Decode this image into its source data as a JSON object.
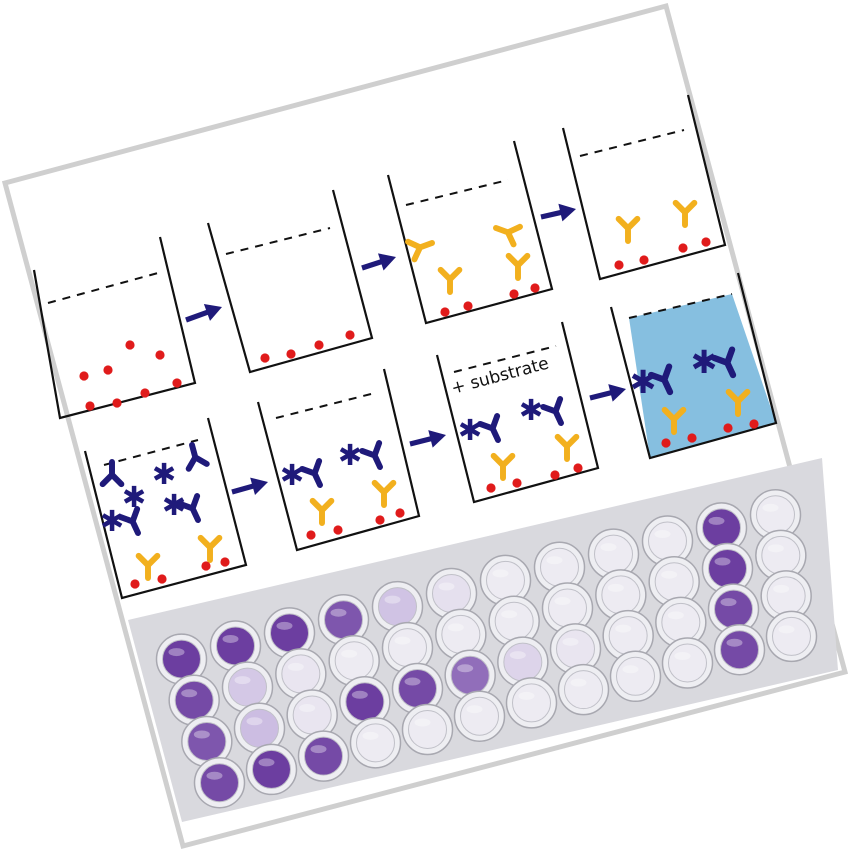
{
  "steps": [
    {
      "label": ""
    },
    {
      "label": ""
    },
    {
      "label": ""
    },
    {
      "label": ""
    },
    {
      "label": ""
    },
    {
      "label": ""
    },
    {
      "label": "+ substrate"
    },
    {
      "label": ""
    }
  ],
  "colors": {
    "frame": "#cfcfcf",
    "antigen": "#e01b1b",
    "primary_antibody": "#f2b01e",
    "secondary_antibody": "#1f1a7a",
    "arrow": "#1f1a7a",
    "colored_solution": "#86bfe0",
    "plate_background": "#d9d9de",
    "well_dark": "#6c3ea0",
    "well_light": "#c8b7e0",
    "well_empty": "#f1f1f4"
  },
  "plate": {
    "columns": 12,
    "rows": 4,
    "well_intensity": [
      [
        0.9,
        0.9,
        0.9,
        0.8,
        0.4,
        0.15,
        0.05,
        0.05,
        0.05,
        0.05,
        0.9,
        0.05
      ],
      [
        0.85,
        0.35,
        0.1,
        0.05,
        0.05,
        0.05,
        0.05,
        0.05,
        0.05,
        0.05,
        0.9,
        0.05
      ],
      [
        0.8,
        0.45,
        0.1,
        0.9,
        0.85,
        0.7,
        0.25,
        0.1,
        0.05,
        0.05,
        0.85,
        0.05
      ],
      [
        0.85,
        0.9,
        0.85,
        0.05,
        0.05,
        0.05,
        0.05,
        0.05,
        0.05,
        0.05,
        0.85,
        0.05
      ]
    ]
  }
}
